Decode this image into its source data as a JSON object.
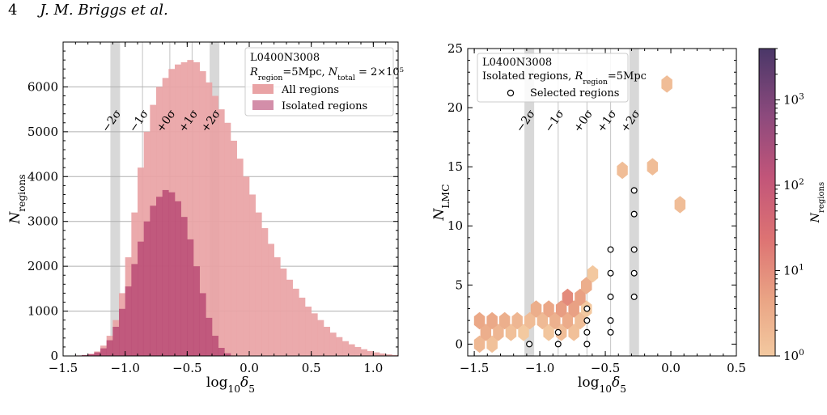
{
  "header": {
    "page_number": "4",
    "authors": "J. M. Briggs et al."
  },
  "colors": {
    "all": "#e9a3a5",
    "isolated": "#b5436f",
    "band": "#d8d8d8",
    "sigma_line": "#cccccc",
    "grid": "#b0b0b0"
  },
  "sigma_labels": [
    "−2σ",
    "−1σ",
    "+0σ",
    "+1σ",
    "+2σ"
  ],
  "sigma_positions": [
    -1.08,
    -0.86,
    -0.64,
    -0.46,
    -0.28
  ],
  "sigma_band_indices": [
    0,
    4
  ],
  "chart_data": [
    {
      "type": "bar",
      "panel": "left",
      "xlabel": "log₁₀δ₅",
      "ylabel": "N_regions",
      "xlim": [
        -1.5,
        1.2
      ],
      "ylim": [
        0,
        7000
      ],
      "xticks": [
        -1.5,
        -1.0,
        -0.5,
        0.0,
        0.5,
        1.0
      ],
      "xtick_labels": [
        "−1.5",
        "−1.0",
        "−0.5",
        "0.0",
        "0.5",
        "1.0"
      ],
      "yticks": [
        0,
        1000,
        2000,
        3000,
        4000,
        5000,
        6000
      ],
      "ytick_labels": [
        "0",
        "1000",
        "2000",
        "3000",
        "4000",
        "5000",
        "6000"
      ],
      "grid": "horizontal",
      "legend": {
        "placement": "top-right",
        "line1": "L0400N3008",
        "line2": "R_region=5Mpc, N_total = 2×10⁵",
        "entries": [
          "All regions",
          "Isolated regions"
        ]
      },
      "x": [
        -1.475,
        -1.425,
        -1.375,
        -1.325,
        -1.275,
        -1.225,
        -1.175,
        -1.125,
        -1.075,
        -1.025,
        -0.975,
        -0.925,
        -0.875,
        -0.825,
        -0.775,
        -0.725,
        -0.675,
        -0.625,
        -0.575,
        -0.525,
        -0.475,
        -0.425,
        -0.375,
        -0.325,
        -0.275,
        -0.225,
        -0.175,
        -0.125,
        -0.075,
        -0.025,
        0.025,
        0.075,
        0.125,
        0.175,
        0.225,
        0.275,
        0.325,
        0.375,
        0.425,
        0.475,
        0.525,
        0.575,
        0.625,
        0.675,
        0.725,
        0.775,
        0.825,
        0.875,
        0.925,
        0.975,
        1.025,
        1.075,
        1.125,
        1.175
      ],
      "series": [
        {
          "name": "All regions",
          "values": [
            2,
            5,
            10,
            20,
            45,
            100,
            230,
            450,
            800,
            1400,
            2200,
            3200,
            4200,
            5000,
            5600,
            6000,
            6200,
            6400,
            6500,
            6550,
            6600,
            6550,
            6350,
            6100,
            5800,
            5500,
            5200,
            4800,
            4400,
            4000,
            3600,
            3200,
            2850,
            2500,
            2200,
            1950,
            1700,
            1500,
            1300,
            1100,
            950,
            800,
            650,
            520,
            420,
            330,
            260,
            200,
            150,
            110,
            80,
            55,
            35,
            20
          ]
        },
        {
          "name": "Isolated regions",
          "values": [
            2,
            5,
            10,
            20,
            40,
            80,
            170,
            350,
            650,
            1050,
            1550,
            2050,
            2550,
            3000,
            3350,
            3550,
            3700,
            3650,
            3450,
            3100,
            2600,
            2000,
            1400,
            850,
            450,
            180,
            60,
            10,
            0,
            0,
            0,
            0,
            0,
            0,
            0,
            0,
            0,
            0,
            0,
            0,
            0,
            0,
            0,
            0,
            0,
            0,
            0,
            0,
            0,
            0,
            0,
            0,
            0,
            0
          ]
        }
      ]
    },
    {
      "type": "heatmap",
      "panel": "right",
      "xlabel": "log₁₀δ₅",
      "ylabel": "N_LMC",
      "xlim": [
        -1.55,
        0.5
      ],
      "ylim": [
        -1,
        25
      ],
      "xticks": [
        -1.5,
        -1.0,
        -0.5,
        0.0,
        0.5
      ],
      "xtick_labels": [
        "−1.5",
        "−1.0",
        "−0.5",
        "0.0",
        "0.5"
      ],
      "yticks": [
        0,
        5,
        10,
        15,
        20,
        25
      ],
      "ytick_labels": [
        "0",
        "5",
        "10",
        "15",
        "20",
        "25"
      ],
      "colorbar": {
        "label": "N_regions",
        "scale": "log",
        "range": [
          1,
          4000
        ],
        "tick_labels": [
          "10⁰",
          "10¹",
          "10²",
          "10³"
        ],
        "tick_values": [
          1,
          10,
          100,
          1000
        ]
      },
      "legend": {
        "placement": "top-left",
        "line1": "L0400N3008",
        "line2": "Isolated regions, R_region=5Mpc",
        "entry": "Selected regions"
      },
      "selected_points": [
        {
          "x": -1.08,
          "y": 0
        },
        {
          "x": -0.86,
          "y": 0
        },
        {
          "x": -0.86,
          "y": 1
        },
        {
          "x": -0.64,
          "y": 0
        },
        {
          "x": -0.64,
          "y": 1
        },
        {
          "x": -0.64,
          "y": 2
        },
        {
          "x": -0.64,
          "y": 3
        },
        {
          "x": -0.46,
          "y": 1
        },
        {
          "x": -0.46,
          "y": 2
        },
        {
          "x": -0.46,
          "y": 4
        },
        {
          "x": -0.46,
          "y": 6
        },
        {
          "x": -0.46,
          "y": 8
        },
        {
          "x": -0.28,
          "y": 4
        },
        {
          "x": -0.28,
          "y": 6
        },
        {
          "x": -0.28,
          "y": 8
        },
        {
          "x": -0.28,
          "y": 11
        },
        {
          "x": -0.28,
          "y": 13
        }
      ]
    }
  ]
}
